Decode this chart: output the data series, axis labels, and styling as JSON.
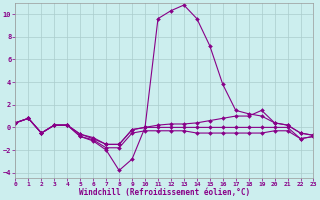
{
  "xlabel": "Windchill (Refroidissement éolien,°C)",
  "bg_color": "#cceeee",
  "line_color": "#880088",
  "grid_color": "#aacccc",
  "xlim": [
    0,
    23
  ],
  "ylim": [
    -4.5,
    11
  ],
  "xticks": [
    0,
    1,
    2,
    3,
    4,
    5,
    6,
    7,
    8,
    9,
    10,
    11,
    12,
    13,
    14,
    15,
    16,
    17,
    18,
    19,
    20,
    21,
    22,
    23
  ],
  "yticks": [
    -4,
    -2,
    0,
    2,
    4,
    6,
    8,
    10
  ],
  "series": [
    [
      0.4,
      0.8,
      -0.5,
      0.2,
      0.2,
      -0.8,
      -1.2,
      -2.0,
      -3.8,
      -2.8,
      0.0,
      0.0,
      0.0,
      0.0,
      0.0,
      0.0,
      0.0,
      0.0,
      0.0,
      0.0,
      0.0,
      0.0,
      -1.0,
      -0.8
    ],
    [
      0.4,
      0.8,
      -0.5,
      0.2,
      0.2,
      -0.6,
      -1.0,
      -1.5,
      -1.5,
      -0.2,
      0.0,
      9.6,
      10.3,
      10.8,
      9.6,
      7.2,
      3.8,
      1.5,
      1.2,
      1.0,
      0.4,
      0.2,
      -0.5,
      -0.7
    ],
    [
      0.4,
      0.8,
      -0.5,
      0.2,
      0.2,
      -0.6,
      -0.9,
      -1.5,
      -1.5,
      -0.2,
      0.0,
      0.2,
      0.3,
      0.3,
      0.4,
      0.6,
      0.8,
      1.0,
      1.0,
      1.5,
      0.4,
      0.2,
      -0.5,
      -0.7
    ],
    [
      0.4,
      0.8,
      -0.5,
      0.2,
      0.2,
      -0.8,
      -1.1,
      -1.8,
      -1.8,
      -0.5,
      -0.3,
      -0.3,
      -0.3,
      -0.3,
      -0.5,
      -0.5,
      -0.5,
      -0.5,
      -0.5,
      -0.5,
      -0.3,
      -0.3,
      -1.0,
      -0.8
    ]
  ]
}
